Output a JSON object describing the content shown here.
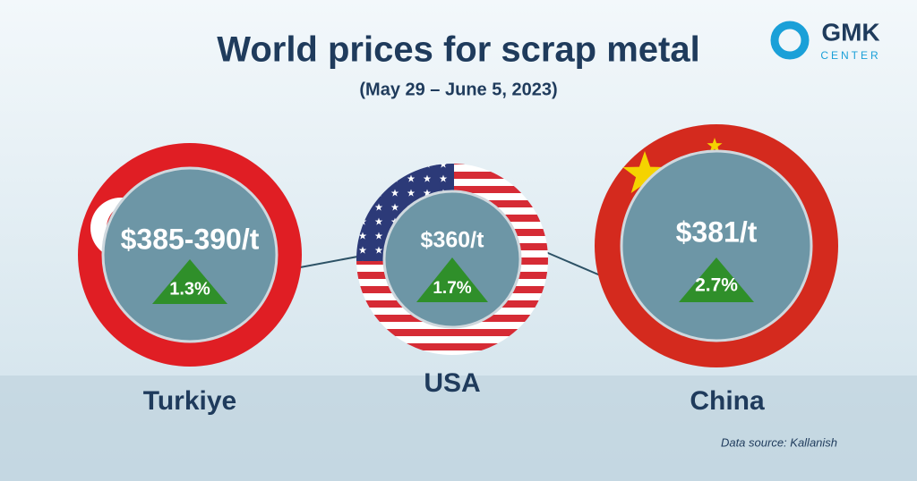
{
  "header": {
    "title": "World prices for scrap metal",
    "subtitle": "(May 29 – June 5, 2023)"
  },
  "logo": {
    "name": "GMK",
    "tagline": "CENTER"
  },
  "items": [
    {
      "country": "Turkiye",
      "price": "$385-390/t",
      "change": "1.3%"
    },
    {
      "country": "USA",
      "price": "$360/t",
      "change": "1.7%"
    },
    {
      "country": "China",
      "price": "$381/t",
      "change": "2.7%"
    }
  ],
  "source": "Data source: Kallanish"
}
